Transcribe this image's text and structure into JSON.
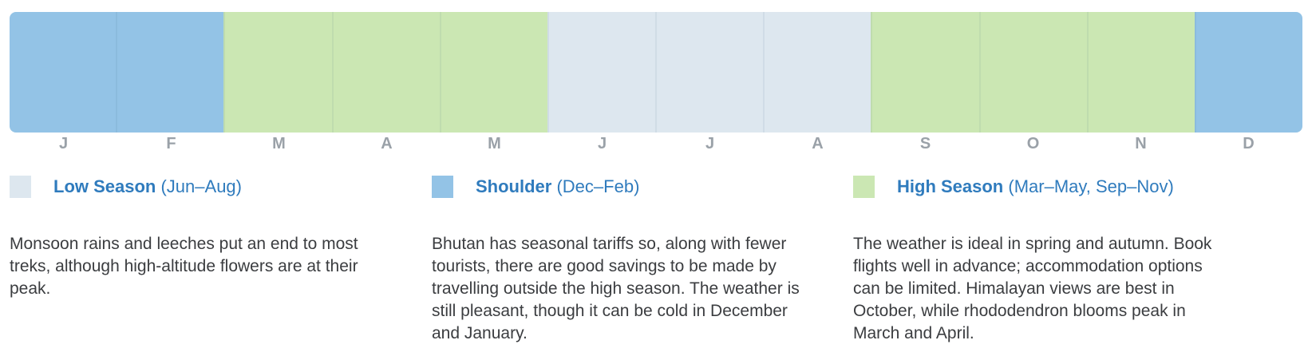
{
  "months": [
    {
      "label": "J",
      "season": "shoulder"
    },
    {
      "label": "F",
      "season": "shoulder"
    },
    {
      "label": "M",
      "season": "high"
    },
    {
      "label": "A",
      "season": "high"
    },
    {
      "label": "M",
      "season": "high"
    },
    {
      "label": "J",
      "season": "low"
    },
    {
      "label": "J",
      "season": "low"
    },
    {
      "label": "A",
      "season": "low"
    },
    {
      "label": "S",
      "season": "high"
    },
    {
      "label": "O",
      "season": "high"
    },
    {
      "label": "N",
      "season": "high"
    },
    {
      "label": "D",
      "season": "shoulder"
    }
  ],
  "colors": {
    "low": "#dde7ef",
    "shoulder": "#93c3e6",
    "high": "#cbe7b3",
    "title_text": "#2f7bbd",
    "body_text": "#3b3d40",
    "month_label": "#9aa1a8"
  },
  "legend": [
    {
      "key": "low",
      "name": "Low Season",
      "months": "(Jun–Aug)",
      "description": "Monsoon rains and leeches put an end to most treks, although high-altitude flowers are at their peak."
    },
    {
      "key": "shoulder",
      "name": "Shoulder",
      "months": "(Dec–Feb)",
      "description": "Bhutan has seasonal tariffs so, along with fewer tourists, there are good savings to be made by travelling outside the high season. The weather is still pleasant, though it can be cold in December and January."
    },
    {
      "key": "high",
      "name": "High Season",
      "months": "(Mar–May, Sep–Nov)",
      "description": "The weather is ideal in spring and autumn. Book flights well in advance; accommodation options can be limited. Himalayan views are best in October, while rhododendron blooms peak in March and April."
    }
  ]
}
